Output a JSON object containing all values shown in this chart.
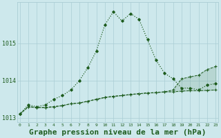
{
  "hours": [
    0,
    1,
    2,
    3,
    4,
    5,
    6,
    7,
    8,
    9,
    10,
    11,
    12,
    13,
    14,
    15,
    16,
    17,
    18,
    19,
    20,
    21,
    22,
    23
  ],
  "pressure_main": [
    1013.1,
    1013.35,
    1013.3,
    1013.35,
    1013.5,
    1013.6,
    1013.75,
    1014.0,
    1014.35,
    1014.8,
    1015.5,
    1015.85,
    1015.6,
    1015.8,
    1015.65,
    1015.1,
    1014.55,
    1014.2,
    1014.05,
    1013.8,
    1013.8,
    1013.75,
    1013.88,
    1013.92
  ],
  "pressure_min": [
    1013.1,
    1013.3,
    1013.28,
    1013.28,
    1013.3,
    1013.33,
    1013.38,
    1013.4,
    1013.45,
    1013.5,
    1013.55,
    1013.58,
    1013.6,
    1013.63,
    1013.65,
    1013.67,
    1013.68,
    1013.7,
    1013.7,
    1013.72,
    1013.73,
    1013.73,
    1013.74,
    1013.75
  ],
  "pressure_max": [
    1013.1,
    1013.3,
    1013.28,
    1013.28,
    1013.3,
    1013.33,
    1013.38,
    1013.4,
    1013.45,
    1013.5,
    1013.55,
    1013.58,
    1013.6,
    1013.63,
    1013.65,
    1013.67,
    1013.68,
    1013.7,
    1013.75,
    1014.05,
    1014.1,
    1014.15,
    1014.3,
    1014.38
  ],
  "ylim": [
    1012.88,
    1016.1
  ],
  "yticks": [
    1013,
    1014,
    1015
  ],
  "xlabel": "Graphe pression niveau de la mer (hPa)",
  "bg_color": "#cde8ec",
  "grid_color": "#aacdd4",
  "line_color": "#1e5c1e",
  "tick_color": "#1e5c1e"
}
